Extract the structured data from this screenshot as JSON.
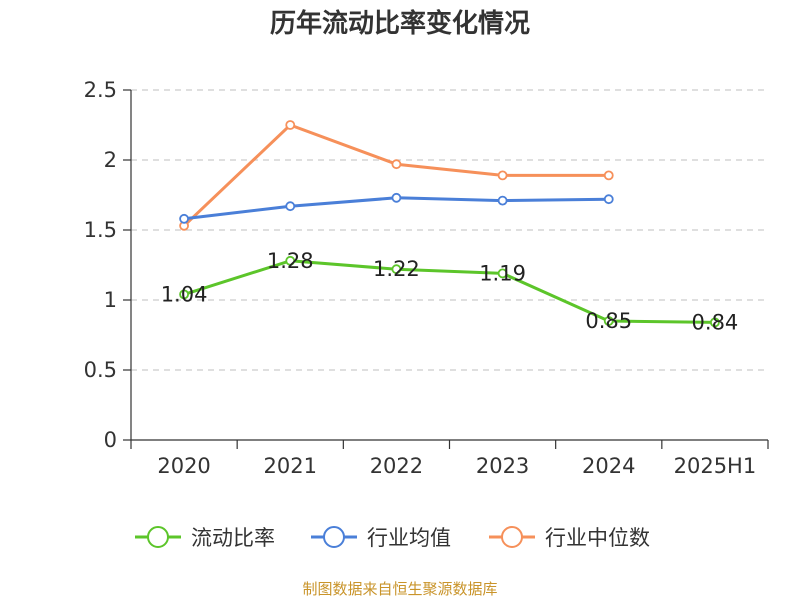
{
  "chart_data": {
    "type": "line",
    "title": "历年流动比率变化情况",
    "categories": [
      "2020",
      "2021",
      "2022",
      "2023",
      "2024",
      "2025H1"
    ],
    "ylim": [
      0,
      2.5
    ],
    "yticks": [
      "0",
      "0.5",
      "1",
      "1.5",
      "2",
      "2.5"
    ],
    "grid": true,
    "legend_position": "bottom",
    "series": [
      {
        "name": "流动比率",
        "color": "#5cc52a",
        "values": [
          1.04,
          1.28,
          1.22,
          1.19,
          0.85,
          0.84
        ],
        "labels": [
          "1.04",
          "1.28",
          "1.22",
          "1.19",
          "0.85",
          "0.84"
        ]
      },
      {
        "name": "行业均值",
        "color": "#4a7fd8",
        "values": [
          1.58,
          1.67,
          1.73,
          1.71,
          1.72,
          null
        ]
      },
      {
        "name": "行业中位数",
        "color": "#f6905a",
        "values": [
          1.53,
          2.25,
          1.97,
          1.89,
          1.89,
          null
        ]
      }
    ]
  },
  "source_text": "制图数据来自恒生聚源数据库"
}
